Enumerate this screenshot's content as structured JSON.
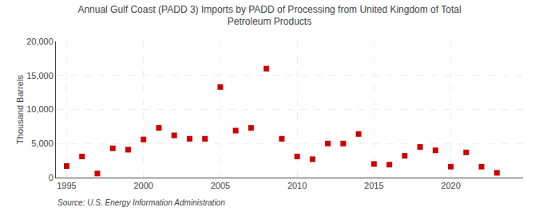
{
  "chart_data": {
    "type": "scatter",
    "title": "Annual Gulf Coast (PADD 3) Imports by PADD of Processing from United Kingdom of Total\nPetroleum Products",
    "ylabel": "Thousand Barrels",
    "source": "Source: U.S. Energy Information Administration",
    "color": "#cc0000",
    "marker": "square",
    "x": [
      1995,
      1996,
      1997,
      1998,
      1999,
      2000,
      2001,
      2002,
      2003,
      2004,
      2005,
      2006,
      2007,
      2008,
      2009,
      2010,
      2011,
      2012,
      2013,
      2014,
      2015,
      2016,
      2017,
      2018,
      2019,
      2020,
      2021,
      2022,
      2023
    ],
    "values": [
      1700,
      3100,
      600,
      4300,
      4100,
      5600,
      7300,
      6200,
      5700,
      5700,
      13300,
      6900,
      7300,
      16000,
      5700,
      3100,
      2700,
      5000,
      5000,
      6400,
      2000,
      1900,
      3200,
      4500,
      4000,
      1600,
      3700,
      1600,
      700
    ],
    "xlim": [
      1994.3,
      2024.7
    ],
    "xticks": [
      1995,
      2000,
      2005,
      2010,
      2015,
      2020
    ],
    "ylim": [
      0,
      20000
    ],
    "yticks": [
      0,
      {
        "value": 5000,
        "label": "5,000"
      },
      {
        "value": 10000,
        "label": "10,000"
      },
      {
        "value": 15000,
        "label": "15,000"
      },
      {
        "value": 20000,
        "label": "20,000"
      }
    ],
    "grid": true
  }
}
